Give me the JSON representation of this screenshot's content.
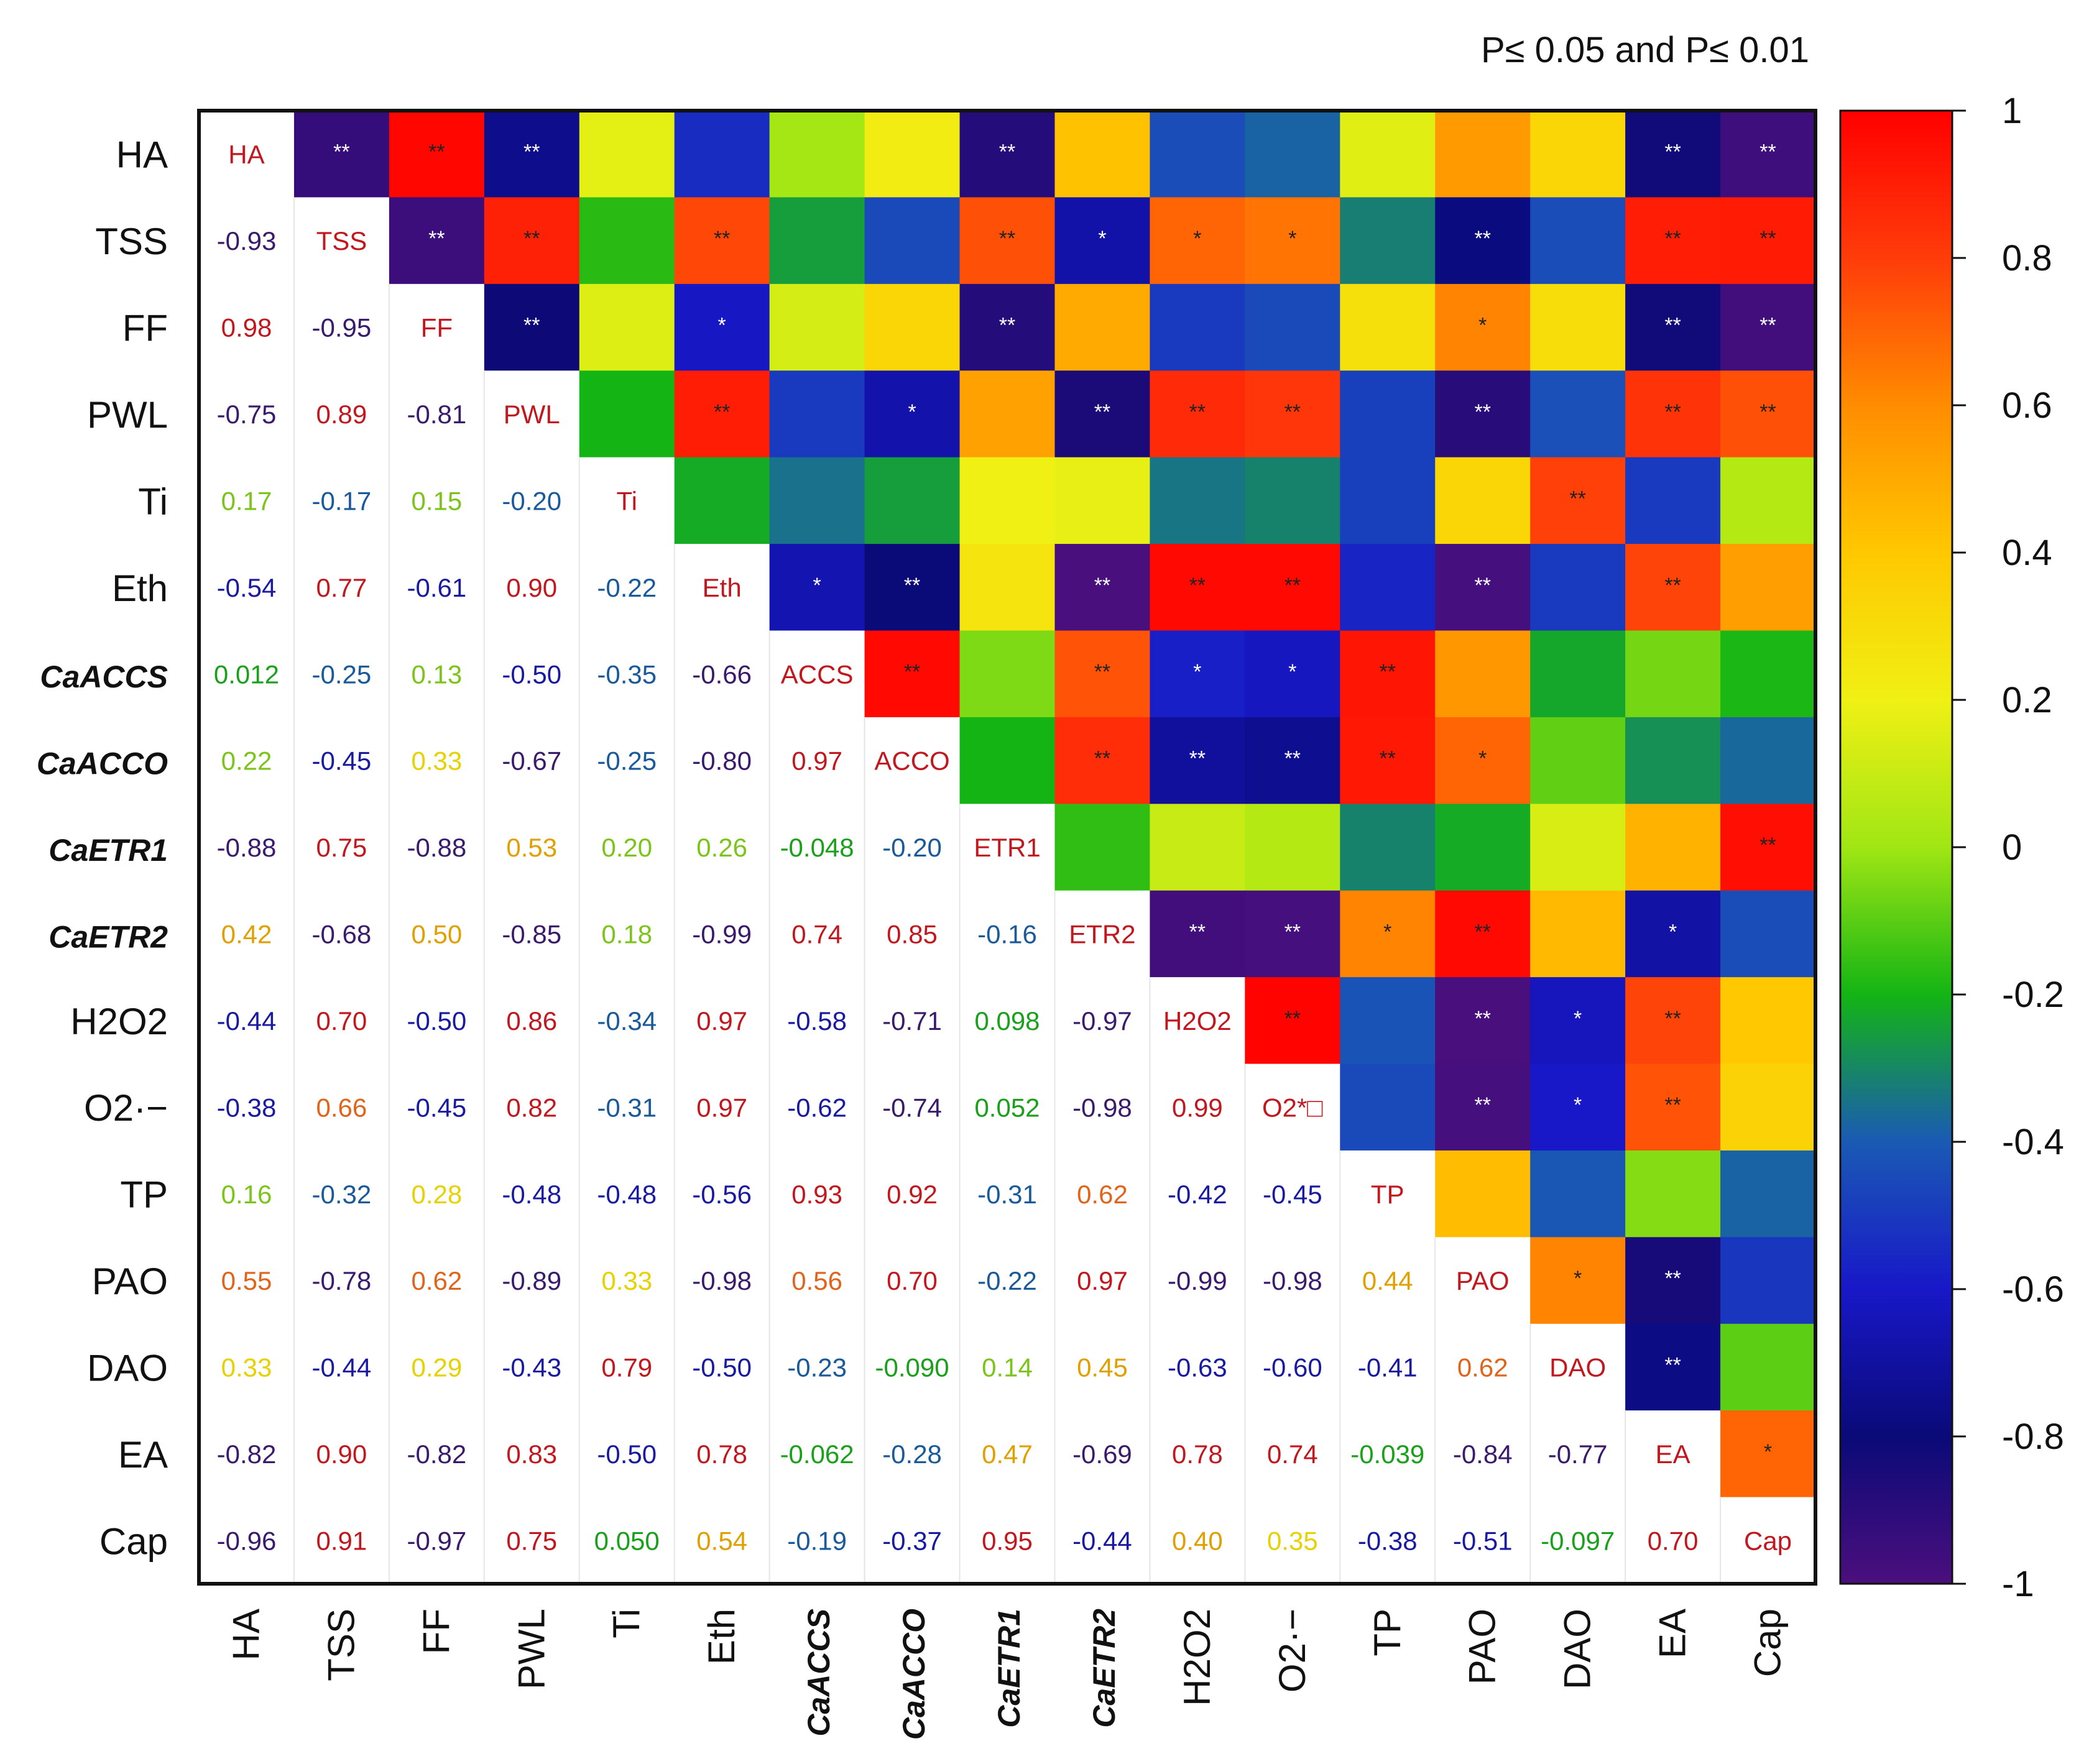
{
  "chart_data": {
    "type": "heatmap",
    "title": "P≤ 0.05 and P≤ 0.01",
    "variables": [
      {
        "label": "HA",
        "style": "normal"
      },
      {
        "label": "TSS",
        "style": "normal"
      },
      {
        "label": "FF",
        "style": "normal"
      },
      {
        "label": "PWL",
        "style": "normal"
      },
      {
        "label": "Ti",
        "style": "normal"
      },
      {
        "label": "Eth",
        "style": "normal"
      },
      {
        "label": "CaACCS",
        "style": "italic-bold"
      },
      {
        "label": "CaACCO",
        "style": "italic-bold"
      },
      {
        "label": "CaETR1",
        "style": "italic-bold"
      },
      {
        "label": "CaETR2",
        "style": "italic-bold"
      },
      {
        "label": "H2O2",
        "style": "normal"
      },
      {
        "label": "O2·−",
        "style": "normal"
      },
      {
        "label": "TP",
        "style": "normal"
      },
      {
        "label": "PAO",
        "style": "normal"
      },
      {
        "label": "DAO",
        "style": "normal"
      },
      {
        "label": "EA",
        "style": "normal"
      },
      {
        "label": "Cap",
        "style": "normal"
      }
    ],
    "diagonal_labels": [
      "HA",
      "TSS",
      "FF",
      "PWL",
      "Ti",
      "Eth",
      "ACCS",
      "ACCO",
      "ETR1",
      "ETR2",
      "H2O2",
      "O2*□",
      "TP",
      "PAO",
      "DAO",
      "EA",
      "Cap"
    ],
    "lower_triangle": [
      [],
      [
        "-0.93"
      ],
      [
        "0.98",
        "-0.95"
      ],
      [
        "-0.75",
        "0.89",
        "-0.81"
      ],
      [
        "0.17",
        "-0.17",
        "0.15",
        "-0.20"
      ],
      [
        "-0.54",
        "0.77",
        "-0.61",
        "0.90",
        "-0.22"
      ],
      [
        "0.012",
        "-0.25",
        "0.13",
        "-0.50",
        "-0.35",
        "-0.66"
      ],
      [
        "0.22",
        "-0.45",
        "0.33",
        "-0.67",
        "-0.25",
        "-0.80",
        "0.97"
      ],
      [
        "-0.88",
        "0.75",
        "-0.88",
        "0.53",
        "0.20",
        "0.26",
        "-0.048",
        "-0.20"
      ],
      [
        "0.42",
        "-0.68",
        "0.50",
        "-0.85",
        "0.18",
        "-0.99",
        "0.74",
        "0.85",
        "-0.16"
      ],
      [
        "-0.44",
        "0.70",
        "-0.50",
        "0.86",
        "-0.34",
        "0.97",
        "-0.58",
        "-0.71",
        "0.098",
        "-0.97"
      ],
      [
        "-0.38",
        "0.66",
        "-0.45",
        "0.82",
        "-0.31",
        "0.97",
        "-0.62",
        "-0.74",
        "0.052",
        "-0.98",
        "0.99"
      ],
      [
        "0.16",
        "-0.32",
        "0.28",
        "-0.48",
        "-0.48",
        "-0.56",
        "0.93",
        "0.92",
        "-0.31",
        "0.62",
        "-0.42",
        "-0.45"
      ],
      [
        "0.55",
        "-0.78",
        "0.62",
        "-0.89",
        "0.33",
        "-0.98",
        "0.56",
        "0.70",
        "-0.22",
        "0.97",
        "-0.99",
        "-0.98",
        "0.44"
      ],
      [
        "0.33",
        "-0.44",
        "0.29",
        "-0.43",
        "0.79",
        "-0.50",
        "-0.23",
        "-0.090",
        "0.14",
        "0.45",
        "-0.63",
        "-0.60",
        "-0.41",
        "0.62"
      ],
      [
        "-0.82",
        "0.90",
        "-0.82",
        "0.83",
        "-0.50",
        "0.78",
        "-0.062",
        "-0.28",
        "0.47",
        "-0.69",
        "0.78",
        "0.74",
        "-0.039",
        "-0.84",
        "-0.77"
      ],
      [
        "-0.96",
        "0.91",
        "-0.97",
        "0.75",
        "0.050",
        "0.54",
        "-0.19",
        "-0.37",
        "0.95",
        "-0.44",
        "0.40",
        "0.35",
        "-0.38",
        "-0.51",
        "-0.097",
        "0.70"
      ]
    ],
    "upper_significance": [
      [
        "",
        "**",
        "**",
        "**",
        "",
        "",
        "",
        "",
        "**",
        "",
        "",
        "",
        "",
        "",
        "",
        "**",
        "**"
      ],
      [
        "",
        "",
        "**",
        "**",
        "",
        "**",
        "",
        "",
        "**",
        "*",
        "*",
        "*",
        "",
        "**",
        "",
        "**",
        "**"
      ],
      [
        "",
        "",
        "",
        "**",
        "",
        "*",
        "",
        "",
        "**",
        "",
        "",
        "",
        "",
        "*",
        "",
        "**",
        "**"
      ],
      [
        "",
        "",
        "",
        "",
        "",
        "**",
        "",
        "*",
        "",
        "**",
        "**",
        "**",
        "",
        "**",
        "",
        "**",
        "**"
      ],
      [
        "",
        "",
        "",
        "",
        "",
        "",
        "",
        "",
        "",
        "",
        "",
        "",
        "",
        "",
        "**",
        "",
        ""
      ],
      [
        "",
        "",
        "",
        "",
        "",
        "",
        "*",
        "**",
        "",
        "**",
        "**",
        "**",
        "",
        "**",
        "",
        "**",
        ""
      ],
      [
        "",
        "",
        "",
        "",
        "",
        "",
        "",
        "**",
        "",
        "**",
        "*",
        "*",
        "**",
        "",
        "",
        "",
        ""
      ],
      [
        "",
        "",
        "",
        "",
        "",
        "",
        "",
        "",
        "",
        "**",
        "**",
        "**",
        "**",
        "*",
        "",
        "",
        ""
      ],
      [
        "",
        "",
        "",
        "",
        "",
        "",
        "",
        "",
        "",
        "",
        "",
        "",
        "",
        "",
        "",
        "",
        "**"
      ],
      [
        "",
        "",
        "",
        "",
        "",
        "",
        "",
        "",
        "",
        "",
        "**",
        "**",
        "*",
        "**",
        "",
        "*",
        ""
      ],
      [
        "",
        "",
        "",
        "",
        "",
        "",
        "",
        "",
        "",
        "",
        "",
        "**",
        "",
        "**",
        "*",
        "**",
        ""
      ],
      [
        "",
        "",
        "",
        "",
        "",
        "",
        "",
        "",
        "",
        "",
        "",
        "",
        "",
        "**",
        "*",
        "**",
        ""
      ],
      [
        "",
        "",
        "",
        "",
        "",
        "",
        "",
        "",
        "",
        "",
        "",
        "",
        "",
        "",
        "",
        "",
        ""
      ],
      [
        "",
        "",
        "",
        "",
        "",
        "",
        "",
        "",
        "",
        "",
        "",
        "",
        "",
        "",
        "*",
        "**",
        ""
      ],
      [
        "",
        "",
        "",
        "",
        "",
        "",
        "",
        "",
        "",
        "",
        "",
        "",
        "",
        "",
        "",
        "**",
        ""
      ],
      [
        "",
        "",
        "",
        "",
        "",
        "",
        "",
        "",
        "",
        "",
        "",
        "",
        "",
        "",
        "",
        "",
        "*"
      ],
      [
        "",
        "",
        "",
        "",
        "",
        "",
        "",
        "",
        "",
        "",
        "",
        "",
        "",
        "",
        "",
        "",
        ""
      ]
    ],
    "colorbar": {
      "range": [
        -1,
        1
      ],
      "ticks": [
        "1",
        "0.8",
        "0.6",
        "0.4",
        "0.2",
        "0",
        "-0.2",
        "-0.4",
        "-0.6",
        "-0.8",
        "-1"
      ],
      "colors": [
        "#4b0f7d",
        "#0a0a78",
        "#1818c8",
        "#1a5ab4",
        "#14b414",
        "#a0e614",
        "#f0f014",
        "#ffc800",
        "#ff8c00",
        "#ff3c0a",
        "#ff0000"
      ]
    },
    "label_color": "#c0181e"
  }
}
